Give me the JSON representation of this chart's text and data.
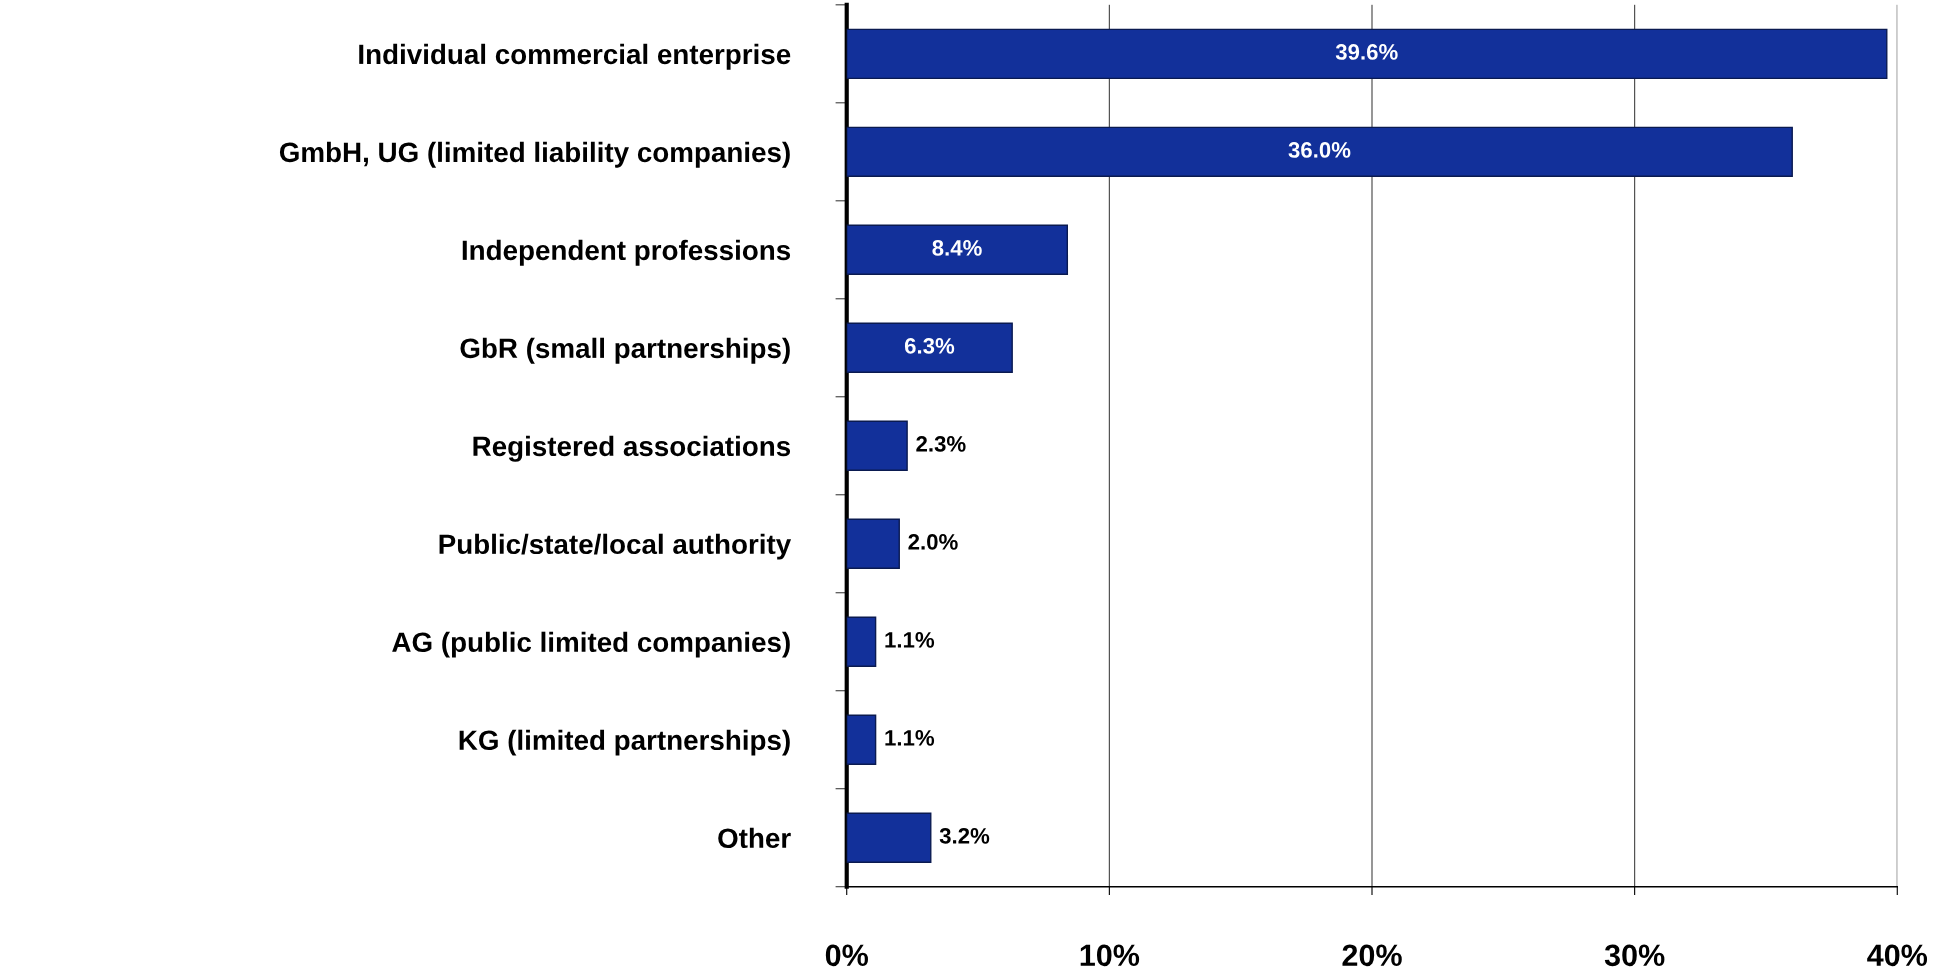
{
  "chart_data": {
    "type": "bar",
    "orientation": "horizontal",
    "categories": [
      "Individual commercial enterprise",
      "GmbH, UG (limited liability companies)",
      "Independent professions",
      "GbR (small partnerships)",
      "Registered associations",
      "Public/state/local authority",
      "AG (public limited companies)",
      "KG (limited partnerships)",
      "Other"
    ],
    "values": [
      39.6,
      36.0,
      8.4,
      6.3,
      2.3,
      2.0,
      1.1,
      1.1,
      3.2
    ],
    "value_labels": [
      "39.6%",
      "36.0%",
      "8.4%",
      "6.3%",
      "2.3%",
      "2.0%",
      "1.1%",
      "1.1%",
      "3.2%"
    ],
    "color": "#12309a",
    "xlim": [
      0,
      40
    ],
    "xticks": [
      {
        "value": 0,
        "label": "0%"
      },
      {
        "value": 10,
        "label": "10%"
      },
      {
        "value": 20,
        "label": "20%"
      },
      {
        "value": 30,
        "label": "30%"
      },
      {
        "value": 40,
        "label": "40%"
      }
    ],
    "grid": "x"
  }
}
